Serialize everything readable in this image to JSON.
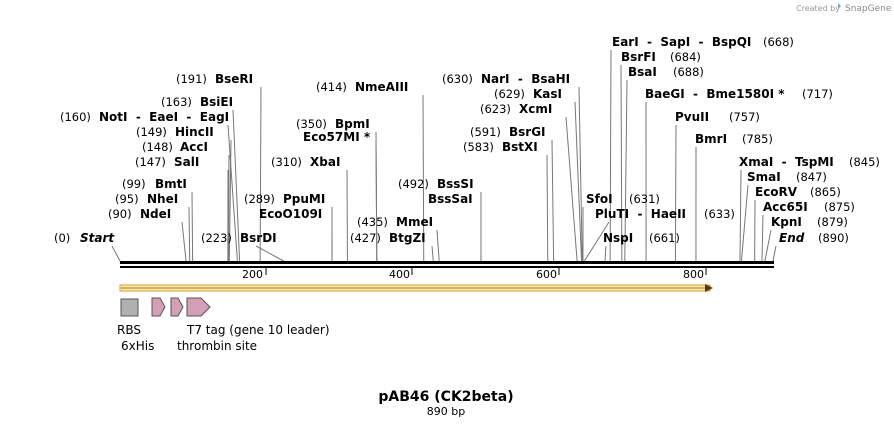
{
  "credit": {
    "prefix": "Created by",
    "brand": "SnapGene"
  },
  "plasmid": {
    "name": "pAB46 (CK2beta)",
    "length_label": "890 bp",
    "length": 890
  },
  "ruler": {
    "ticks": [
      200,
      400,
      600,
      800
    ]
  },
  "sites": [
    {
      "name": "Start",
      "pos": 0,
      "pos_label": "(0)",
      "italic": true,
      "line": [
        0
      ]
    },
    {
      "name": "NdeI",
      "pos": 90,
      "pos_label": "(90)",
      "line": [
        90
      ]
    },
    {
      "name": "NheI",
      "pos": 95,
      "pos_label": "(95)",
      "line": [
        95
      ]
    },
    {
      "name": "BmtI",
      "pos": 99,
      "pos_label": "(99)",
      "line": [
        99
      ]
    },
    {
      "name": "SalI",
      "pos": 147,
      "pos_label": "(147)",
      "line": [
        147
      ]
    },
    {
      "name": "AccI",
      "pos": 148,
      "pos_label": "(148)",
      "line": [
        148
      ]
    },
    {
      "name": "HincII",
      "pos": 149,
      "pos_label": "(149)",
      "line": [
        149
      ]
    },
    {
      "name": "NotI  -  EaeI  -  EagI",
      "pos": 160,
      "pos_label": "(160)",
      "line": [
        160
      ]
    },
    {
      "name": "BsiEI",
      "pos": 163,
      "pos_label": "(163)",
      "line": [
        163
      ]
    },
    {
      "name": "BseRI",
      "pos": 191,
      "pos_label": "(191)",
      "line": [
        191
      ]
    },
    {
      "name": "BsrDI",
      "pos": 223,
      "pos_label": "(223)",
      "line": [
        223
      ]
    },
    {
      "name": "EcoO109I",
      "pos": 289,
      "pos_label": "",
      "line": [
        289
      ]
    },
    {
      "name": "PpuMI",
      "pos": 289,
      "pos_label": "(289)",
      "line": [
        289
      ]
    },
    {
      "name": "XbaI",
      "pos": 310,
      "pos_label": "(310)",
      "line": [
        310
      ]
    },
    {
      "name": "Eco57MI *",
      "pos": 350,
      "pos_label": "",
      "line": [
        350
      ]
    },
    {
      "name": "BpmI",
      "pos": 350,
      "pos_label": "(350)",
      "line": [
        350
      ]
    },
    {
      "name": "NmeAIII",
      "pos": 414,
      "pos_label": "(414)",
      "line": [
        414
      ]
    },
    {
      "name": "BtgZI",
      "pos": 427,
      "pos_label": "(427)",
      "line": [
        427
      ]
    },
    {
      "name": "MmeI",
      "pos": 435,
      "pos_label": "(435)",
      "line": [
        435
      ]
    },
    {
      "name": "BssSaI",
      "pos": 492,
      "pos_label": "",
      "line": [
        492
      ]
    },
    {
      "name": "BssSI",
      "pos": 492,
      "pos_label": "(492)",
      "line": [
        492
      ]
    },
    {
      "name": "BstXI",
      "pos": 583,
      "pos_label": "(583)",
      "line": [
        583
      ]
    },
    {
      "name": "BsrGI",
      "pos": 591,
      "pos_label": "(591)",
      "line": [
        591
      ]
    },
    {
      "name": "XcmI",
      "pos": 623,
      "pos_label": "(623)",
      "line": [
        623
      ]
    },
    {
      "name": "KasI",
      "pos": 629,
      "pos_label": "(629)",
      "line": [
        629
      ]
    },
    {
      "name": "NarI  -  BsaHI",
      "pos": 630,
      "pos_label": "(630)",
      "line": [
        630
      ]
    },
    {
      "name": "SfoI",
      "pos": 631,
      "pos_label": "(631)",
      "line": [
        631
      ]
    },
    {
      "name": "NspI",
      "pos": 661,
      "pos_label": "(661)",
      "line": [
        661
      ]
    },
    {
      "name": "PluTI  -  HaeII",
      "pos": 633,
      "pos_label": "(633)",
      "line": [
        633
      ]
    },
    {
      "name": "EarI  -  SapI  -  BspQI",
      "pos": 668,
      "pos_label": "(668)",
      "line": [
        668
      ]
    },
    {
      "name": "BsrFI",
      "pos": 684,
      "pos_label": "(684)",
      "line": [
        684
      ]
    },
    {
      "name": "BsaI",
      "pos": 688,
      "pos_label": "(688)",
      "line": [
        688
      ]
    },
    {
      "name": "BaeGI  -  Bme1580I *",
      "pos": 717,
      "pos_label": "(717)",
      "line": [
        717
      ]
    },
    {
      "name": "PvuII",
      "pos": 757,
      "pos_label": "(757)",
      "line": [
        757
      ]
    },
    {
      "name": "BmrI",
      "pos": 785,
      "pos_label": "(785)",
      "line": [
        785
      ]
    },
    {
      "name": "XmaI  -  TspMI",
      "pos": 845,
      "pos_label": "(845)",
      "line": [
        845
      ]
    },
    {
      "name": "SmaI",
      "pos": 847,
      "pos_label": "(847)",
      "line": [
        847
      ]
    },
    {
      "name": "EcoRV",
      "pos": 865,
      "pos_label": "(865)",
      "line": [
        865
      ]
    },
    {
      "name": "Acc65I",
      "pos": 875,
      "pos_label": "(875)",
      "line": [
        875
      ]
    },
    {
      "name": "KpnI",
      "pos": 879,
      "pos_label": "(879)",
      "line": [
        879
      ]
    },
    {
      "name": "End",
      "pos": 890,
      "pos_label": "(890)",
      "italic": true,
      "line": [
        890
      ]
    }
  ],
  "features": {
    "orf_arrow": {
      "start": 0,
      "end": 807,
      "color": "#f0c060"
    },
    "rbs": {
      "label": "RBS",
      "color": "#b0b0b0"
    },
    "his_tag": {
      "label": "6xHis",
      "color": "#d4a0b8"
    },
    "thrombin": {
      "label": "thrombin site",
      "color": "#d4a0b8"
    },
    "t7_tag": {
      "label": "T7 tag (gene 10 leader)",
      "color": "#d4a0b8"
    }
  }
}
